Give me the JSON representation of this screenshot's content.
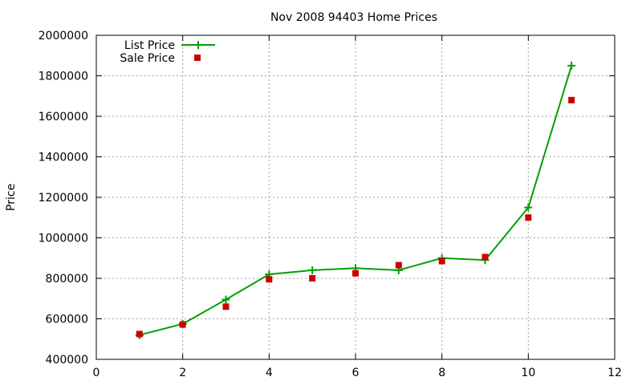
{
  "chart_data": {
    "type": "line",
    "title": "Nov 2008 94403 Home Prices",
    "xlabel": "",
    "ylabel": "Price",
    "xlim": [
      0,
      12
    ],
    "ylim": [
      400000,
      2000000
    ],
    "xticks": [
      0,
      2,
      4,
      6,
      8,
      10,
      12
    ],
    "yticks": [
      400000,
      600000,
      800000,
      1000000,
      1200000,
      1400000,
      1600000,
      1800000,
      2000000
    ],
    "grid": true,
    "legend_position": "top-left",
    "series": [
      {
        "name": "List Price",
        "style": "line-plus",
        "color": "#00a000",
        "x": [
          1,
          2,
          3,
          4,
          5,
          6,
          7,
          8,
          9,
          10,
          11
        ],
        "y": [
          520000,
          575000,
          695000,
          820000,
          840000,
          850000,
          840000,
          900000,
          890000,
          1150000,
          1850000
        ]
      },
      {
        "name": "Sale Price",
        "style": "square-points",
        "color": "#cc0000",
        "x": [
          1,
          2,
          3,
          4,
          5,
          6,
          7,
          8,
          9,
          10,
          11
        ],
        "y": [
          525000,
          572000,
          660000,
          795000,
          800000,
          825000,
          865000,
          885000,
          905000,
          1100000,
          1680000
        ]
      }
    ]
  }
}
